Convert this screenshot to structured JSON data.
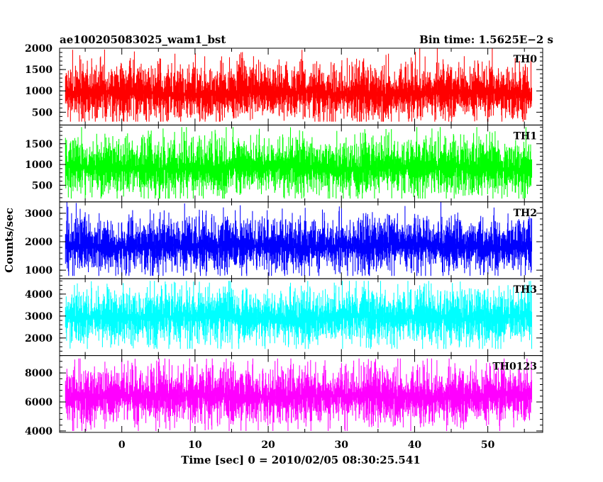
{
  "chart_data": {
    "type": "line",
    "title": "ae100205083025_wam1_bst",
    "bin_time_label": "Bin time: 1.5625E−2 s",
    "xlabel": "Time [sec] 0 = 2010/02/05 08:30:25.541",
    "ylabel": "Counts/sec",
    "xlim": [
      -8.5,
      57.5
    ],
    "xticks": [
      0,
      10,
      20,
      30,
      40,
      50
    ],
    "data_x_range": [
      -7.7,
      56.0
    ],
    "panels": [
      {
        "name": "TH0",
        "color": "#ff0000",
        "ylim": [
          200,
          2000
        ],
        "yticks": [
          500,
          1000,
          1500,
          2000
        ],
        "envelope": {
          "mean": 950,
          "min_low": 280,
          "max_high": 2000,
          "spread": 330
        }
      },
      {
        "name": "TH1",
        "color": "#00ff00",
        "ylim": [
          100,
          1950
        ],
        "yticks": [
          500,
          1000,
          1500
        ],
        "envelope": {
          "mean": 920,
          "min_low": 180,
          "max_high": 1900,
          "spread": 340
        }
      },
      {
        "name": "TH2",
        "color": "#0000ff",
        "ylim": [
          700,
          3400
        ],
        "yticks": [
          1000,
          2000,
          3000
        ],
        "envelope": {
          "mean": 1850,
          "min_low": 800,
          "max_high": 3400,
          "spread": 480
        }
      },
      {
        "name": "TH3",
        "color": "#00ffff",
        "ylim": [
          1200,
          4700
        ],
        "yticks": [
          2000,
          3000,
          4000
        ],
        "envelope": {
          "mean": 2950,
          "min_low": 1500,
          "max_high": 4600,
          "spread": 620
        }
      },
      {
        "name": "TH0123",
        "color": "#ff00ff",
        "ylim": [
          3900,
          9200
        ],
        "yticks": [
          4000,
          6000,
          8000
        ],
        "envelope": {
          "mean": 6400,
          "min_low": 4000,
          "max_high": 9000,
          "spread": 1000
        }
      }
    ]
  }
}
